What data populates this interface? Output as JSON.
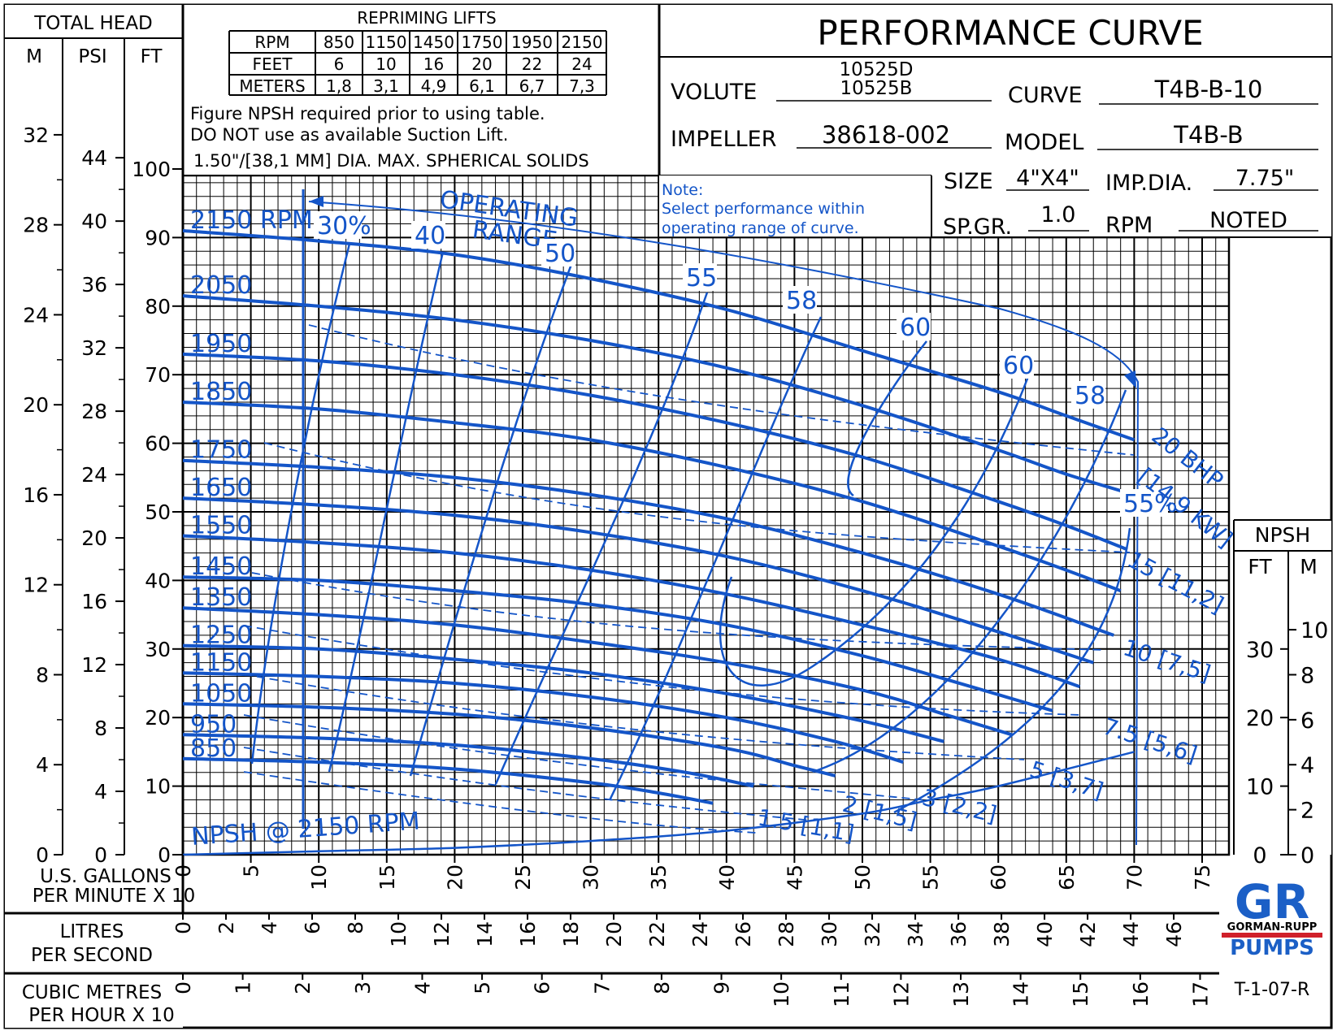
{
  "title": "PERFORMANCE CURVE",
  "header": {
    "volute_label": "VOLUTE",
    "volute_values": [
      "10525D",
      "10525B"
    ],
    "curve_label": "CURVE",
    "curve_value": "T4B-B-10",
    "impeller_label": "IMPELLER",
    "impeller_value": "38618-002",
    "model_label": "MODEL",
    "model_value": "T4B-B",
    "size_label": "SIZE",
    "size_value": "4\"X4\"",
    "impdia_label": "IMP.DIA.",
    "impdia_value": "7.75\"",
    "spgr_label": "SP.GR.",
    "spgr_value": "1.0",
    "rpm_label": "RPM",
    "rpm_value": "NOTED"
  },
  "repriming": {
    "title": "REPRIMING LIFTS",
    "rows": [
      [
        "RPM",
        "850",
        "1150",
        "1450",
        "1750",
        "1950",
        "2150"
      ],
      [
        "FEET",
        "6",
        "10",
        "16",
        "20",
        "22",
        "24"
      ],
      [
        "METERS",
        "1,8",
        "3,1",
        "4,9",
        "6,1",
        "6,7",
        "7,3"
      ]
    ],
    "note_line1": "Figure NPSH required prior to using table.",
    "note_line2": "DO NOT use as available Suction Lift.",
    "solids": "1.50\"/[38,1 MM] DIA. MAX. SPHERICAL SOLIDS"
  },
  "note": {
    "line1": "Note:",
    "line2": "Select performance within",
    "line3": "operating range of curve."
  },
  "total_head": {
    "title": "TOTAL HEAD",
    "col_m": "M",
    "col_psi": "PSI",
    "col_ft": "FT"
  },
  "npsh_box": {
    "title": "NPSH",
    "col_ft": "FT",
    "col_m": "M"
  },
  "bottom": {
    "gpm_line1": "U.S. GALLONS",
    "gpm_line2": "PER MINUTE X 10",
    "lps_line1": "LITRES",
    "lps_line2": "PER SECOND",
    "cmh_line1": "CUBIC METRES",
    "cmh_line2": "PER HOUR X 10"
  },
  "logo": {
    "mark": "GR",
    "name": "GORMAN-RUPP",
    "pumps": "PUMPS"
  },
  "doc_code": "T-1-07-R",
  "colors": {
    "curve": "#1455c8",
    "ink": "#000000",
    "logo_blue": "#1b5fc6",
    "logo_red": "#d0202a"
  },
  "chart_data": {
    "type": "line",
    "x_unit": "U.S. GPM x 10",
    "y_unit": "FT",
    "xlim": [
      0,
      77
    ],
    "ylim": [
      0,
      100
    ],
    "x_ticks": [
      "0",
      "5",
      "10",
      "15",
      "20",
      "25",
      "30",
      "35",
      "40",
      "45",
      "50",
      "55",
      "60",
      "65",
      "70",
      "75"
    ],
    "lps_ticks": [
      "0",
      "2",
      "4",
      "6",
      "8",
      "10",
      "12",
      "14",
      "16",
      "18",
      "20",
      "22",
      "24",
      "26",
      "28",
      "30",
      "32",
      "34",
      "36",
      "38",
      "40",
      "42",
      "44",
      "46"
    ],
    "cmh_ticks": [
      "0",
      "1",
      "2",
      "3",
      "4",
      "5",
      "6",
      "7",
      "8",
      "9",
      "10",
      "11",
      "12",
      "13",
      "14",
      "15",
      "16",
      "17"
    ],
    "ft_ticks": [
      "0",
      "10",
      "20",
      "30",
      "40",
      "50",
      "60",
      "70",
      "80",
      "90",
      "100"
    ],
    "psi_ticks": [
      "0",
      "4",
      "8",
      "12",
      "16",
      "20",
      "24",
      "28",
      "32",
      "36",
      "40",
      "44"
    ],
    "m_ticks": [
      "0",
      "4",
      "8",
      "12",
      "16",
      "20",
      "24",
      "28",
      "32"
    ],
    "npsh_ft_ticks": [
      "0",
      "10",
      "20",
      "30"
    ],
    "npsh_m_ticks": [
      "0",
      "2",
      "4",
      "6",
      "8",
      "10"
    ],
    "series": [
      {
        "name": "2150 RPM",
        "x": [
          0,
          10,
          20,
          30,
          40,
          50,
          60,
          65,
          70
        ],
        "y": [
          91,
          89.5,
          87.5,
          84,
          79.5,
          73.5,
          67.5,
          64,
          60.5
        ]
      },
      {
        "name": "2050",
        "x": [
          0,
          10,
          20,
          30,
          40,
          50,
          60,
          65,
          70
        ],
        "y": [
          81.5,
          80,
          78,
          75,
          71,
          65.5,
          59,
          55.5,
          52.5
        ]
      },
      {
        "name": "1950",
        "x": [
          0,
          10,
          20,
          30,
          40,
          50,
          60,
          65,
          69.5
        ],
        "y": [
          73,
          72,
          70,
          67,
          63,
          58,
          51.5,
          48,
          44.5
        ]
      },
      {
        "name": "1850",
        "x": [
          0,
          10,
          20,
          30,
          40,
          50,
          60,
          65,
          69
        ],
        "y": [
          66,
          65,
          63,
          60.5,
          56.5,
          51.5,
          45,
          41.5,
          38.5
        ]
      },
      {
        "name": "1750",
        "x": [
          0,
          10,
          20,
          30,
          40,
          50,
          60,
          68.5
        ],
        "y": [
          57.5,
          56.5,
          55,
          52.5,
          49,
          44,
          38,
          32
        ]
      },
      {
        "name": "1650",
        "x": [
          0,
          10,
          20,
          30,
          40,
          50,
          60,
          67
        ],
        "y": [
          52,
          51,
          49.5,
          47,
          43.5,
          38.5,
          32.5,
          28
        ]
      },
      {
        "name": "1550",
        "x": [
          0,
          10,
          20,
          30,
          40,
          50,
          60,
          66
        ],
        "y": [
          46.5,
          45.5,
          44,
          41.5,
          38,
          33.5,
          28.5,
          24.5
        ]
      },
      {
        "name": "1450",
        "x": [
          0,
          10,
          20,
          30,
          40,
          50,
          58,
          64
        ],
        "y": [
          40.5,
          40,
          38.5,
          36.5,
          33.5,
          29,
          24.5,
          21
        ]
      },
      {
        "name": "1350",
        "x": [
          0,
          10,
          20,
          30,
          40,
          50,
          56,
          61
        ],
        "y": [
          36,
          35,
          33.5,
          31,
          28,
          24,
          20.5,
          17.5
        ]
      },
      {
        "name": "1250",
        "x": [
          0,
          10,
          20,
          30,
          40,
          50,
          56
        ],
        "y": [
          30.5,
          30,
          28.5,
          26.5,
          23.5,
          19.5,
          16.5
        ]
      },
      {
        "name": "1150",
        "x": [
          0,
          10,
          20,
          30,
          40,
          48,
          53
        ],
        "y": [
          26.5,
          26,
          25,
          23,
          20,
          16.5,
          13.5
        ]
      },
      {
        "name": "1050",
        "x": [
          0,
          10,
          20,
          30,
          40,
          45,
          48
        ],
        "y": [
          22,
          21.5,
          20.5,
          18.5,
          15.5,
          13,
          11.5
        ]
      },
      {
        "name": "950",
        "x": [
          0,
          10,
          20,
          30,
          37,
          42
        ],
        "y": [
          17.5,
          17,
          16,
          14,
          12,
          10
        ]
      },
      {
        "name": "850",
        "x": [
          0,
          10,
          20,
          30,
          35,
          39
        ],
        "y": [
          14,
          13.5,
          12.5,
          10.5,
          9,
          7.5
        ]
      },
      {
        "name": "NPSH @ 2150 RPM",
        "x": [
          0,
          10,
          20,
          30,
          40,
          50,
          55,
          60,
          70
        ],
        "y": [
          0,
          0.5,
          1,
          2,
          3.5,
          6,
          8,
          10,
          15
        ]
      }
    ],
    "efficiency_labels": [
      "30%",
      "40",
      "50",
      "55",
      "58",
      "60",
      "60",
      "58",
      "55%"
    ],
    "power_labels": [
      "20 BHP",
      "[14,9 KW]",
      "15 [11,2]",
      "10 [7,5]",
      "7.5 [5,6]",
      "5 [3,7]",
      "3 [2,2]",
      "2 [1,5]",
      "1.5 [1,1]"
    ],
    "annotations": [
      "OPERATING",
      "RANGE"
    ]
  }
}
